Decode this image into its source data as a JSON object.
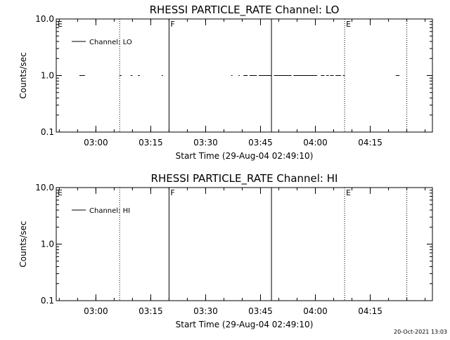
{
  "footer": {
    "timestamp": "20-Oct-2021 13:03"
  },
  "chart_data": [
    {
      "type": "line",
      "title": "RHESSI PARTICLE_RATE Channel: LO",
      "xlabel": "Start Time (29-Aug-04 02:49:10)",
      "ylabel": "Counts/sec",
      "yscale": "log",
      "ylim": [
        0.1,
        10.0
      ],
      "yticks": [
        "10.0",
        "1.0",
        "0.1"
      ],
      "xlim": [
        "02:49:10",
        "04:32:00"
      ],
      "xticks": [
        "03:00",
        "03:15",
        "03:30",
        "03:45",
        "04:00",
        "04:15"
      ],
      "legend": {
        "placement": "top-left",
        "entries": [
          "Channel: LO"
        ]
      },
      "markers": [
        {
          "time": "02:49:10",
          "label": "E",
          "style": "none"
        },
        {
          "time": "03:06:30",
          "label": "",
          "style": "dotted"
        },
        {
          "time": "03:20:00",
          "label": "F",
          "style": "solid"
        },
        {
          "time": "03:48:00",
          "label": "",
          "style": "solid"
        },
        {
          "time": "04:08:00",
          "label": "E",
          "style": "dotted"
        },
        {
          "time": "04:25:00",
          "label": "",
          "style": "dotted"
        }
      ],
      "series": [
        {
          "name": "Channel: LO",
          "segments": [
            {
              "start": "02:55:30",
              "end": "02:57:00",
              "value": 1.0
            },
            {
              "start": "03:06:30",
              "end": "03:07:00",
              "value": 1.0
            },
            {
              "start": "03:09:30",
              "end": "03:10:00",
              "value": 1.0
            },
            {
              "start": "03:11:30",
              "end": "03:12:00",
              "value": 1.0
            },
            {
              "start": "03:18:00",
              "end": "03:18:20",
              "value": 1.0
            },
            {
              "start": "03:37:00",
              "end": "03:37:20",
              "value": 1.0
            },
            {
              "start": "03:39:00",
              "end": "03:39:20",
              "value": 1.0
            },
            {
              "start": "03:40:20",
              "end": "03:41:30",
              "value": 1.0
            },
            {
              "start": "03:42:00",
              "end": "03:44:00",
              "value": 1.0
            },
            {
              "start": "03:44:30",
              "end": "03:48:00",
              "value": 1.0
            },
            {
              "start": "03:48:40",
              "end": "03:53:30",
              "value": 1.0
            },
            {
              "start": "03:54:00",
              "end": "04:00:30",
              "value": 1.0
            },
            {
              "start": "04:01:30",
              "end": "04:02:30",
              "value": 1.0
            },
            {
              "start": "04:03:00",
              "end": "04:03:40",
              "value": 1.0
            },
            {
              "start": "04:04:00",
              "end": "04:05:00",
              "value": 1.0
            },
            {
              "start": "04:05:30",
              "end": "04:07:00",
              "value": 1.0
            },
            {
              "start": "04:07:30",
              "end": "04:08:00",
              "value": 1.0
            },
            {
              "start": "04:22:00",
              "end": "04:23:00",
              "value": 1.0
            }
          ]
        }
      ]
    },
    {
      "type": "line",
      "title": "RHESSI PARTICLE_RATE Channel: HI",
      "xlabel": "Start Time (29-Aug-04 02:49:10)",
      "ylabel": "Counts/sec",
      "yscale": "log",
      "ylim": [
        0.1,
        10.0
      ],
      "yticks": [
        "10.0",
        "1.0",
        "0.1"
      ],
      "xlim": [
        "02:49:10",
        "04:32:00"
      ],
      "xticks": [
        "03:00",
        "03:15",
        "03:30",
        "03:45",
        "04:00",
        "04:15"
      ],
      "legend": {
        "placement": "top-left",
        "entries": [
          "Channel: HI"
        ]
      },
      "markers": [
        {
          "time": "02:49:10",
          "label": "E",
          "style": "none"
        },
        {
          "time": "03:06:30",
          "label": "",
          "style": "dotted"
        },
        {
          "time": "03:20:00",
          "label": "F",
          "style": "solid"
        },
        {
          "time": "03:48:00",
          "label": "",
          "style": "solid"
        },
        {
          "time": "04:08:00",
          "label": "E",
          "style": "dotted"
        },
        {
          "time": "04:25:00",
          "label": "",
          "style": "dotted"
        }
      ],
      "series": [
        {
          "name": "Channel: HI",
          "segments": []
        }
      ]
    }
  ]
}
